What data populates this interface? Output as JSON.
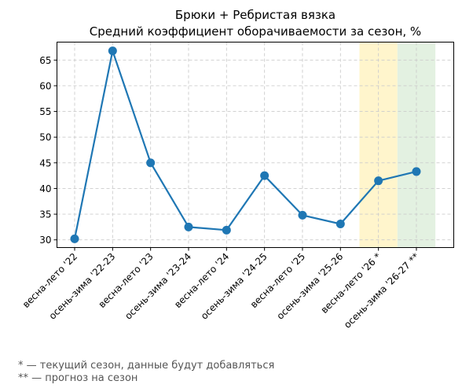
{
  "chart_data": {
    "type": "line",
    "title": "Брюки + Ребристая вязка",
    "subtitle": "Средний коэффициент оборачиваемости за сезон, %",
    "xlabel": "",
    "ylabel": "",
    "categories": [
      "весна-лето '22",
      "осень-зима '22-23",
      "весна-лето '23",
      "осень-зима '23-24",
      "весна-лето '24",
      "осень-зима '24-25",
      "весна-лето '25",
      "осень-зима '25-26",
      "весна-лето '26 *",
      "осень-зима '26-27 **"
    ],
    "series": [
      {
        "values": [
          30.2,
          66.8,
          45.0,
          32.5,
          31.9,
          42.5,
          34.8,
          33.1,
          41.5,
          43.3
        ],
        "color": "#1f77b4"
      }
    ],
    "ylim": [
      28.5,
      68.5
    ],
    "yticks": [
      30,
      35,
      40,
      45,
      50,
      55,
      60,
      65
    ],
    "grid": true,
    "highlights": [
      {
        "category_index": 8,
        "color": "#fff5cc",
        "meaning": "current season"
      },
      {
        "category_index": 9,
        "color": "#e3f1e1",
        "meaning": "forecast"
      }
    ]
  },
  "footnotes": {
    "current": "* — текущий сезон, данные будут добавляться",
    "forecast": "** — прогноз на сезон"
  }
}
